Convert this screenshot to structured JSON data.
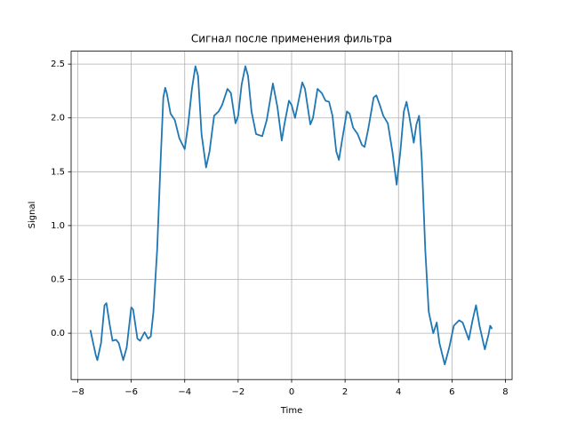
{
  "chart_data": {
    "type": "line",
    "title": "Сигнал после применения фильтра",
    "xlabel": "Time",
    "ylabel": "Signal",
    "x": [
      -7.53,
      -7.33,
      -7.27,
      -7.13,
      -7.0,
      -6.93,
      -6.8,
      -6.7,
      -6.57,
      -6.47,
      -6.3,
      -6.17,
      -6.0,
      -5.93,
      -5.77,
      -5.67,
      -5.5,
      -5.37,
      -5.27,
      -5.17,
      -5.03,
      -4.9,
      -4.8,
      -4.73,
      -4.67,
      -4.53,
      -4.37,
      -4.2,
      -4.0,
      -3.87,
      -3.73,
      -3.6,
      -3.5,
      -3.37,
      -3.2,
      -3.07,
      -2.9,
      -2.73,
      -2.6,
      -2.4,
      -2.27,
      -2.1,
      -2.0,
      -1.87,
      -1.73,
      -1.63,
      -1.5,
      -1.33,
      -1.1,
      -0.93,
      -0.7,
      -0.53,
      -0.37,
      -0.27,
      -0.1,
      0,
      0.13,
      0.27,
      0.4,
      0.5,
      0.7,
      0.8,
      0.97,
      1.13,
      1.27,
      1.4,
      1.53,
      1.67,
      1.77,
      1.9,
      2.07,
      2.17,
      2.3,
      2.47,
      2.63,
      2.73,
      2.87,
      3.07,
      3.17,
      3.3,
      3.43,
      3.6,
      3.77,
      3.93,
      4.07,
      4.2,
      4.3,
      4.4,
      4.57,
      4.67,
      4.77,
      4.87,
      5.0,
      5.13,
      5.3,
      5.43,
      5.53,
      5.73,
      5.9,
      6.07,
      6.27,
      6.4,
      6.63,
      6.77,
      6.9,
      7.03,
      7.23,
      7.37,
      7.43,
      7.5
    ],
    "series": [
      {
        "color": "#1f77b4",
        "values": [
          0.03,
          -0.2,
          -0.25,
          -0.09,
          0.26,
          0.28,
          0.07,
          -0.07,
          -0.06,
          -0.09,
          -0.25,
          -0.13,
          0.24,
          0.22,
          -0.05,
          -0.07,
          0.01,
          -0.05,
          -0.03,
          0.2,
          0.78,
          1.61,
          2.19,
          2.28,
          2.23,
          2.04,
          1.98,
          1.81,
          1.71,
          1.94,
          2.27,
          2.48,
          2.39,
          1.85,
          1.54,
          1.69,
          2.02,
          2.06,
          2.12,
          2.27,
          2.23,
          1.95,
          2.02,
          2.31,
          2.48,
          2.39,
          2.06,
          1.85,
          1.83,
          1.98,
          2.32,
          2.1,
          1.79,
          1.94,
          2.16,
          2.12,
          2.0,
          2.17,
          2.33,
          2.27,
          1.94,
          2.0,
          2.27,
          2.23,
          2.16,
          2.15,
          2.02,
          1.69,
          1.61,
          1.81,
          2.06,
          2.04,
          1.91,
          1.85,
          1.75,
          1.73,
          1.9,
          2.19,
          2.21,
          2.12,
          2.02,
          1.95,
          1.69,
          1.38,
          1.69,
          2.06,
          2.15,
          2.02,
          1.77,
          1.94,
          2.02,
          1.61,
          0.78,
          0.2,
          0.0,
          0.1,
          -0.09,
          -0.29,
          -0.13,
          0.07,
          0.12,
          0.1,
          -0.06,
          0.12,
          0.26,
          0.07,
          -0.15,
          -0.01,
          0.07,
          0.04
        ]
      }
    ],
    "xlim": [
      -8.25,
      8.25
    ],
    "ylim": [
      -0.43,
      2.62
    ],
    "xticks": [
      {
        "value": -8,
        "label": "−8"
      },
      {
        "value": -6,
        "label": "−6"
      },
      {
        "value": -4,
        "label": "−4"
      },
      {
        "value": -2,
        "label": "−2"
      },
      0,
      2,
      4,
      6,
      8
    ],
    "yticks": [
      {
        "value": 0,
        "label": "0.0"
      },
      0.5,
      {
        "value": 1,
        "label": "1.0"
      },
      1.5,
      {
        "value": 2,
        "label": "2.0"
      },
      2.5
    ],
    "grid": true
  }
}
